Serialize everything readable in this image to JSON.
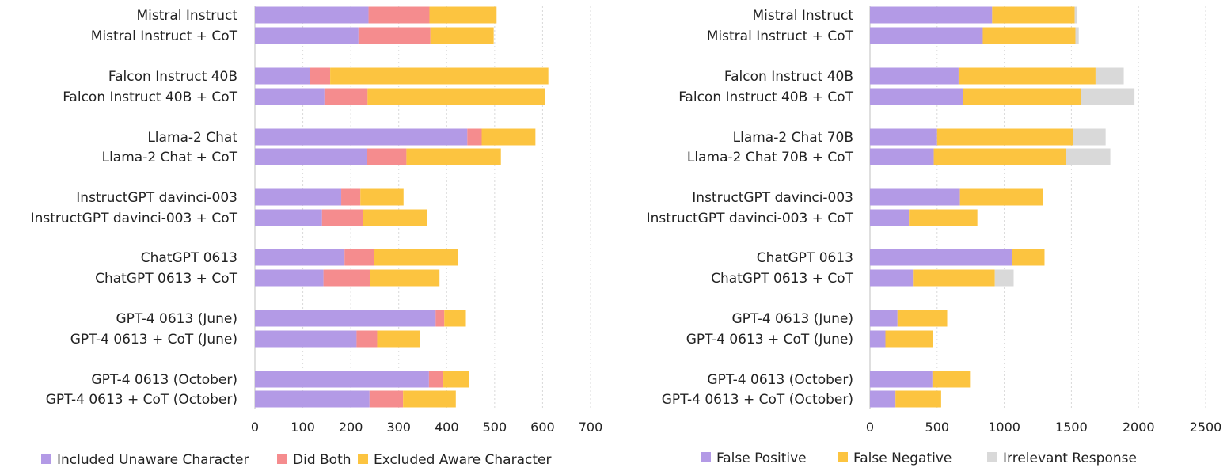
{
  "chart_data": [
    {
      "type": "bar",
      "orientation": "horizontal",
      "stacked": true,
      "title": "",
      "xlabel": "",
      "ylabel": "",
      "xlim": [
        0,
        700
      ],
      "xticks": [
        "0",
        "100",
        "200",
        "300",
        "400",
        "500",
        "600",
        "700"
      ],
      "grid": true,
      "legend_position": "bottom",
      "categories": [
        "Mistral Instruct",
        "Mistral Instruct + CoT",
        "Falcon Instruct 40B",
        "Falcon Instruct 40B + CoT",
        "Llama-2 Chat",
        "Llama-2 Chat + CoT",
        "InstructGPT davinci-003",
        "InstructGPT davinci-003 + CoT",
        "ChatGPT 0613",
        "ChatGPT 0613 + CoT",
        "GPT-4 0613 (June)",
        "GPT-4 0613 + CoT (June)",
        "GPT-4 0613 (October)",
        "GPT-4 0613 + CoT (October)"
      ],
      "series": [
        {
          "name": "Included Unaware Character",
          "color": "#b39ae6",
          "values": [
            237,
            216,
            115,
            145,
            443,
            233,
            180,
            140,
            187,
            143,
            377,
            212,
            363,
            239
          ]
        },
        {
          "name": "Did Both",
          "color": "#f58c8e",
          "values": [
            127,
            150,
            42,
            90,
            30,
            83,
            40,
            86,
            62,
            97,
            18,
            43,
            30,
            70
          ]
        },
        {
          "name": "Excluded Aware Character",
          "color": "#fcc440",
          "values": [
            140,
            132,
            455,
            370,
            112,
            197,
            90,
            133,
            175,
            145,
            45,
            90,
            53,
            110
          ]
        }
      ]
    },
    {
      "type": "bar",
      "orientation": "horizontal",
      "stacked": true,
      "title": "",
      "xlabel": "",
      "ylabel": "",
      "xlim": [
        0,
        2500
      ],
      "xticks": [
        "0",
        "500",
        "1000",
        "1500",
        "2000",
        "2500"
      ],
      "grid": true,
      "legend_position": "bottom",
      "categories": [
        "Mistral Instruct",
        "Mistral Instruct + CoT",
        "Falcon Instruct 40B",
        "Falcon Instruct 40B + CoT",
        "Llama-2 Chat 70B",
        "Llama-2 Chat 70B + CoT",
        "InstructGPT davinci-003",
        "InstructGPT davinci-003 + CoT",
        "ChatGPT 0613",
        "ChatGPT 0613 + CoT",
        "GPT-4 0613 (June)",
        "GPT-4 0613 + CoT (June)",
        "GPT-4 0613 (October)",
        "GPT-4 0613 + CoT (October)"
      ],
      "series": [
        {
          "name": "False Positive",
          "color": "#b39ae6",
          "values": [
            910,
            840,
            660,
            690,
            500,
            475,
            670,
            290,
            1060,
            320,
            205,
            115,
            465,
            190
          ]
        },
        {
          "name": "False Negative",
          "color": "#fcc440",
          "values": [
            615,
            690,
            1020,
            880,
            1015,
            985,
            620,
            510,
            240,
            610,
            370,
            355,
            280,
            340
          ]
        },
        {
          "name": "Irrelevant Response",
          "color": "#d9d9d9",
          "values": [
            20,
            25,
            210,
            400,
            240,
            330,
            0,
            0,
            0,
            140,
            0,
            0,
            0,
            0
          ]
        }
      ]
    }
  ]
}
